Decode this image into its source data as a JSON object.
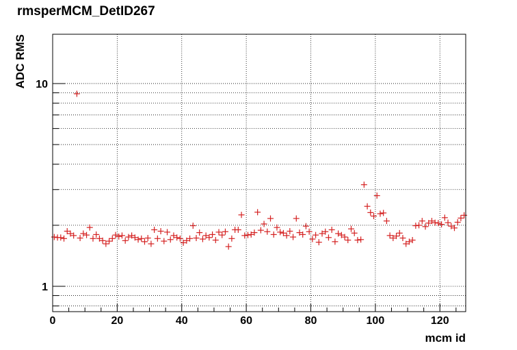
{
  "chart_data": {
    "type": "scatter",
    "title": "rmsperMCM_DetID267",
    "xlabel": "mcm id",
    "ylabel": "ADC RMS",
    "xlim": [
      0,
      128
    ],
    "ylim": [
      0.75,
      17.5
    ],
    "y_scale": "log",
    "grid": true,
    "legend": "none",
    "marker_color": "#d42020",
    "x_ticks": [
      "0",
      "20",
      "40",
      "60",
      "80",
      "100",
      "120"
    ],
    "y_ticks": [
      "1",
      "10"
    ],
    "x": [
      0,
      1,
      2,
      3,
      4,
      5,
      6,
      7,
      8,
      9,
      10,
      11,
      12,
      13,
      14,
      15,
      16,
      17,
      18,
      19,
      20,
      21,
      22,
      23,
      24,
      25,
      26,
      27,
      28,
      29,
      30,
      31,
      32,
      33,
      34,
      35,
      36,
      37,
      38,
      39,
      40,
      41,
      42,
      43,
      44,
      45,
      46,
      47,
      48,
      49,
      50,
      51,
      52,
      53,
      54,
      55,
      56,
      57,
      58,
      59,
      60,
      61,
      62,
      63,
      64,
      65,
      66,
      67,
      68,
      69,
      70,
      71,
      72,
      73,
      74,
      75,
      76,
      77,
      78,
      79,
      80,
      81,
      82,
      83,
      84,
      85,
      86,
      87,
      88,
      89,
      90,
      91,
      92,
      93,
      94,
      95,
      96,
      97,
      98,
      99,
      100,
      101,
      102,
      103,
      104,
      105,
      106,
      107,
      108,
      109,
      110,
      111,
      112,
      113,
      114,
      115,
      116,
      117,
      118,
      119,
      120,
      121,
      122,
      123,
      124,
      125,
      126,
      127
    ],
    "y": [
      1.75,
      1.74,
      1.74,
      1.72,
      1.87,
      1.82,
      1.78,
      8.9,
      1.73,
      1.82,
      1.79,
      1.95,
      1.72,
      1.8,
      1.72,
      1.68,
      1.62,
      1.67,
      1.72,
      1.79,
      1.76,
      1.78,
      1.68,
      1.75,
      1.78,
      1.74,
      1.7,
      1.72,
      1.66,
      1.73,
      1.62,
      1.9,
      1.72,
      1.87,
      1.67,
      1.85,
      1.7,
      1.78,
      1.74,
      1.72,
      1.64,
      1.68,
      1.72,
      1.99,
      1.73,
      1.84,
      1.71,
      1.78,
      1.74,
      1.8,
      1.69,
      1.85,
      1.79,
      1.86,
      1.57,
      1.72,
      1.9,
      1.9,
      2.25,
      1.78,
      1.79,
      1.8,
      1.84,
      2.32,
      1.89,
      2.03,
      1.86,
      2.16,
      1.8,
      1.95,
      1.85,
      1.83,
      1.78,
      1.87,
      1.75,
      2.16,
      1.84,
      1.8,
      1.98,
      1.86,
      1.71,
      1.79,
      1.65,
      1.82,
      1.86,
      1.74,
      1.9,
      1.66,
      1.82,
      1.79,
      1.75,
      1.69,
      1.92,
      1.83,
      1.69,
      1.7,
      3.17,
      2.48,
      2.31,
      2.22,
      2.8,
      2.28,
      2.3,
      2.1,
      1.78,
      1.73,
      1.77,
      1.83,
      1.73,
      1.62,
      1.66,
      1.69,
      1.99,
      2.0,
      2.1,
      1.97,
      2.05,
      2.1,
      2.06,
      2.05,
      2.02,
      2.18,
      2.06,
      1.98,
      1.94,
      2.07,
      2.17,
      2.24
    ]
  }
}
